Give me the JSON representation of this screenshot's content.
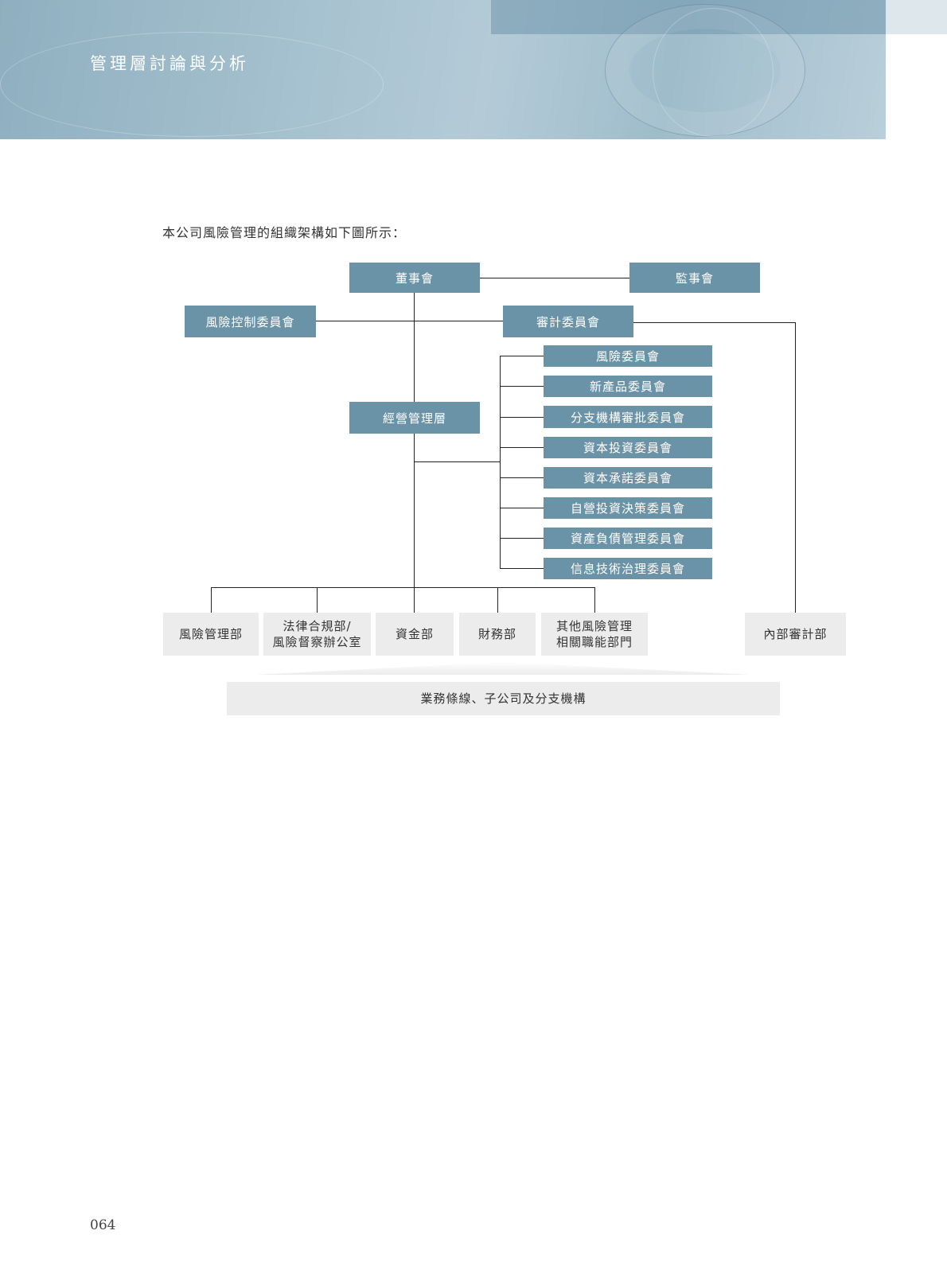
{
  "header": {
    "title": "管理層討論與分析"
  },
  "intro": "本公司風險管理的組織架構如下圖所示：",
  "chart": {
    "board": "董事會",
    "supervisors": "監事會",
    "risk_control_committee": "風險控制委員會",
    "audit_committee": "審計委員會",
    "management": "經營管理層",
    "committees": [
      "風險委員會",
      "新產品委員會",
      "分支機構審批委員會",
      "資本投資委員會",
      "資本承諾委員會",
      "自營投資決策委員會",
      "資產負債管理委員會",
      "信息技術治理委員會"
    ],
    "departments": [
      [
        "風險管理部"
      ],
      [
        "法律合規部/",
        "風險督察辦公室"
      ],
      [
        "資金部"
      ],
      [
        "財務部"
      ],
      [
        "其他風險管理",
        "相關職能部門"
      ]
    ],
    "internal_audit": "內部審計部",
    "business_lines": "業務條線、子公司及分支機構"
  },
  "page_number": "064",
  "colors": {
    "box": "#6b93a8",
    "gray_box": "#ececec"
  }
}
